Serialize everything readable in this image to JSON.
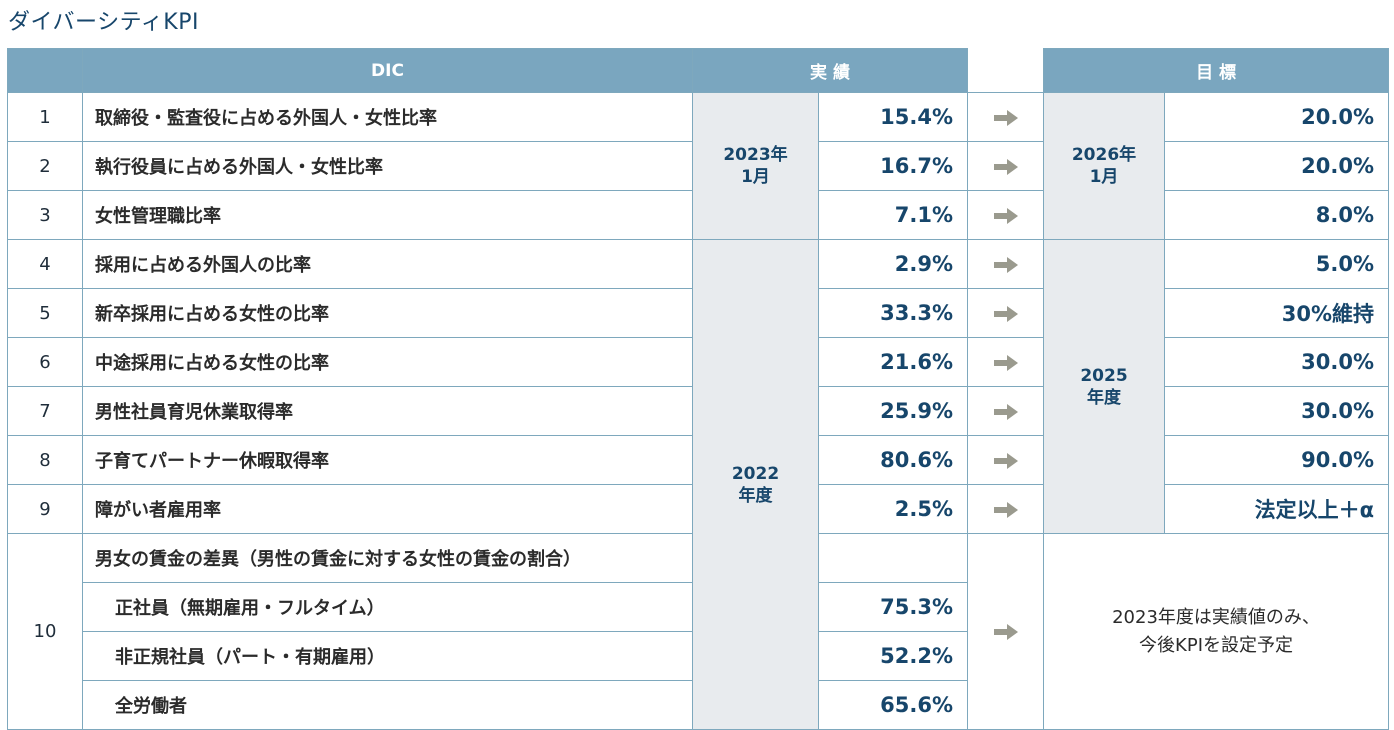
{
  "title": "ダイバーシティKPI",
  "header": {
    "dic": "DIC",
    "actual": "実 績",
    "target": "目 標"
  },
  "periods": {
    "actual_a": [
      "2023年",
      "1月"
    ],
    "actual_b": [
      "2022",
      "年度"
    ],
    "target_a": [
      "2026年",
      "1月"
    ],
    "target_b": [
      "2025",
      "年度"
    ]
  },
  "rows": [
    {
      "no": "1",
      "label": "取締役・監査役に占める外国人・女性比率",
      "actual": "15.4%",
      "target": "20.0%"
    },
    {
      "no": "2",
      "label": "執行役員に占める外国人・女性比率",
      "actual": "16.7%",
      "target": "20.0%"
    },
    {
      "no": "3",
      "label": "女性管理職比率",
      "actual": "7.1%",
      "target": "8.0%"
    },
    {
      "no": "4",
      "label": "採用に占める外国人の比率",
      "actual": "2.9%",
      "target": "5.0%"
    },
    {
      "no": "5",
      "label": "新卒採用に占める女性の比率",
      "actual": "33.3%",
      "target": "30%維持"
    },
    {
      "no": "6",
      "label": "中途採用に占める女性の比率",
      "actual": "21.6%",
      "target": "30.0%"
    },
    {
      "no": "7",
      "label": "男性社員育児休業取得率",
      "actual": "25.9%",
      "target": "30.0%"
    },
    {
      "no": "8",
      "label": "子育てパートナー休暇取得率",
      "actual": "80.6%",
      "target": "90.0%"
    },
    {
      "no": "9",
      "label": "障がい者雇用率",
      "actual": "2.5%",
      "target": "法定以上＋α"
    }
  ],
  "row10": {
    "no": "10",
    "label": "男女の賃金の差異（男性の賃金に対する女性の賃金の割合）",
    "subs": [
      {
        "label": "正社員（無期雇用・フルタイム）",
        "actual": "75.3%"
      },
      {
        "label": "非正規社員（パート・有期雇用）",
        "actual": "52.2%"
      },
      {
        "label": "全労働者",
        "actual": "65.6%"
      }
    ],
    "note": [
      "2023年度は実績値のみ、",
      "今後KPIを設定予定"
    ]
  },
  "icons": {
    "arrow": "right-arrow-icon"
  },
  "colors": {
    "header": "#7aa6bf",
    "accent": "#17466b",
    "period_bg": "#e8ebee",
    "arrow": "#9a9a8e"
  }
}
